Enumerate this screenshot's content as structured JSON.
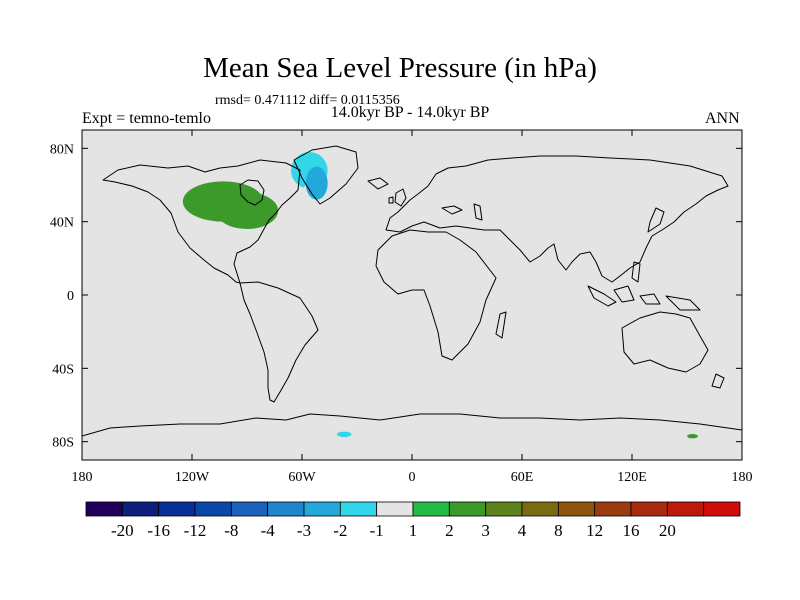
{
  "chart_data": {
    "type": "filled-contour-map",
    "title": "Mean Sea Level Pressure (in hPa)",
    "stats": "rmsd= 0.471112 diff= 0.0115356",
    "subtitle": "14.0kyr BP - 14.0kyr BP",
    "left_label": "Expt = temno-temlo",
    "right_label": "ANN",
    "x_axis": {
      "min": -180,
      "max": 180,
      "ticks": [
        {
          "value": -180,
          "label": "180"
        },
        {
          "value": -120,
          "label": "120W"
        },
        {
          "value": -60,
          "label": "60W"
        },
        {
          "value": 0,
          "label": "0"
        },
        {
          "value": 60,
          "label": "60E"
        },
        {
          "value": 120,
          "label": "120E"
        },
        {
          "value": 180,
          "label": "180"
        }
      ]
    },
    "y_axis": {
      "min": -90,
      "max": 90,
      "ticks": [
        {
          "value": 80,
          "label": "80N"
        },
        {
          "value": 40,
          "label": "40N"
        },
        {
          "value": 0,
          "label": "0"
        },
        {
          "value": -40,
          "label": "40S"
        },
        {
          "value": -80,
          "label": "80S"
        }
      ]
    },
    "colorbar": {
      "colors": [
        "#20005a",
        "#0c1f7c",
        "#0a2f96",
        "#0a48a8",
        "#1a62bc",
        "#1f86cc",
        "#22a8db",
        "#33d6e8",
        "#e4e4e4",
        "#22bb48",
        "#3c9a2a",
        "#5c821e",
        "#7a6a12",
        "#8e5410",
        "#9a3c10",
        "#a82a10",
        "#bc1a0c",
        "#d00c0a"
      ],
      "labels": [
        "-20",
        "-16",
        "-12",
        "-8",
        "-4",
        "-3",
        "-2",
        "-1",
        "1",
        "2",
        "3",
        "4",
        "8",
        "12",
        "16",
        "20"
      ]
    },
    "anomaly_regions": [
      {
        "lon": -103,
        "lat": 51,
        "rlon": 22,
        "rlat": 11,
        "level": "2"
      },
      {
        "lon": -90,
        "lat": 46,
        "rlon": 17,
        "rlat": 10,
        "level": "2"
      },
      {
        "lon": -70,
        "lat": 71,
        "rlon": 20,
        "rlat": 12,
        "level": "-1"
      },
      {
        "lon": -56,
        "lat": 68,
        "rlon": 10,
        "rlat": 10,
        "level": "-2"
      },
      {
        "lon": -42,
        "lat": 58,
        "rlon": 17,
        "rlat": 6,
        "level": "-1"
      },
      {
        "lon": -52,
        "lat": 61,
        "rlon": 6,
        "rlat": 9,
        "level": "-3"
      },
      {
        "lon": -168,
        "lat": 50,
        "rlon": 14,
        "rlat": 11,
        "level": "-1"
      },
      {
        "lon": 172,
        "lat": 50,
        "rlon": 12,
        "rlat": 10,
        "level": "-1"
      },
      {
        "lon": 28,
        "lat": 75,
        "rlon": 22,
        "rlat": 6,
        "level": "-1"
      },
      {
        "lon": 70,
        "lat": 78,
        "rlon": 24,
        "rlat": 7,
        "level": "-1"
      },
      {
        "lon": -37,
        "lat": -76,
        "rlon": 16,
        "rlat": 5,
        "level": "-1"
      },
      {
        "lon": -37,
        "lat": -76,
        "rlon": 4,
        "rlat": 1.5,
        "level": "-2"
      },
      {
        "lon": -172,
        "lat": -77,
        "rlon": 10,
        "rlat": 4,
        "level": "-1"
      },
      {
        "lon": 172,
        "lat": -77,
        "rlon": 9,
        "rlat": 4,
        "level": "-1"
      },
      {
        "lon": 153,
        "lat": -77,
        "rlon": 3,
        "rlat": 1.2,
        "level": "2"
      }
    ]
  }
}
